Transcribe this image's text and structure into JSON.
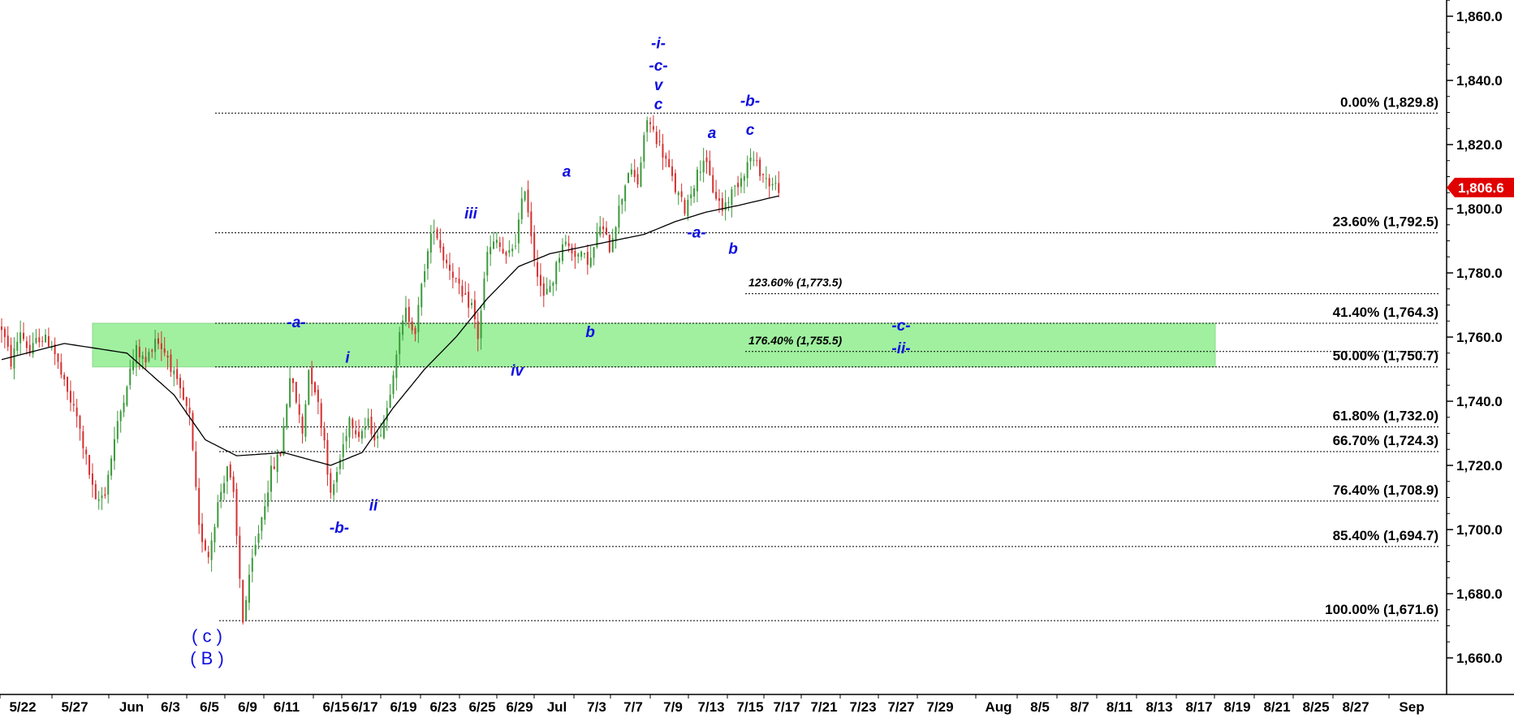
{
  "chart_data": {
    "type": "candlestick",
    "symbol": "",
    "title": "",
    "colors": {
      "up": "#3a9a3a",
      "down": "#d43030",
      "wave_labels": "#1010e0",
      "zone": "#a0f0a0",
      "last_price_bg": "#e00000",
      "moving_average": "#000000"
    },
    "y_axis": {
      "min": 1650,
      "max": 1865,
      "ticks": [
        "1,660.0",
        "1,680.0",
        "1,700.0",
        "1,720.0",
        "1,740.0",
        "1,760.0",
        "1,780.0",
        "1,800.0",
        "1,820.0",
        "1,840.0",
        "1,860.0"
      ],
      "tick_values": [
        1660,
        1680,
        1700,
        1720,
        1740,
        1760,
        1780,
        1800,
        1820,
        1840,
        1860
      ],
      "position": "right"
    },
    "x_axis": {
      "labels": [
        "5/22",
        "5/27",
        "Jun",
        "6/3",
        "6/5",
        "6/9",
        "6/11",
        "6/15",
        "6/17",
        "6/19",
        "6/23",
        "6/25",
        "6/29",
        "Jul",
        "7/3",
        "7/7",
        "7/9",
        "7/13",
        "7/15",
        "7/17",
        "7/21",
        "7/23",
        "7/27",
        "7/29",
        "Aug",
        "8/5",
        "8/7",
        "8/11",
        "8/13",
        "8/17",
        "8/19",
        "8/21",
        "8/25",
        "8/27",
        "Sep"
      ]
    },
    "last_price": {
      "value": 1806.6,
      "label": "1,806.6"
    },
    "retracement_levels": [
      {
        "label": "0.00% (1,829.8)",
        "value": 1829.8
      },
      {
        "label": "23.60% (1,792.5)",
        "value": 1792.5
      },
      {
        "label": "41.40% (1,764.3)",
        "value": 1764.3
      },
      {
        "label": "50.00% (1,750.7)",
        "value": 1750.7
      },
      {
        "label": "61.80% (1,732.0)",
        "value": 1732.0
      },
      {
        "label": "66.70% (1,724.3)",
        "value": 1724.3
      },
      {
        "label": "76.40% (1,708.9)",
        "value": 1708.9
      },
      {
        "label": "85.40% (1,694.7)",
        "value": 1694.7
      },
      {
        "label": "100.00% (1,671.6)",
        "value": 1671.6
      }
    ],
    "extension_levels": [
      {
        "label": "123.60% (1,773.5)",
        "value": 1773.5
      },
      {
        "label": "176.40% (1,755.5)",
        "value": 1755.5
      }
    ],
    "support_zone": {
      "from": 1750.7,
      "to": 1764.3,
      "start_label": "5/27",
      "end_label": "8/19"
    },
    "wave_labels": [
      {
        "text": "( c )",
        "value": 1665
      },
      {
        "text": "( B )",
        "value": 1658
      },
      {
        "text": "-a-",
        "value": 1763
      },
      {
        "text": "-b-",
        "value": 1699
      },
      {
        "text": "i",
        "value": 1752
      },
      {
        "text": "ii",
        "value": 1706
      },
      {
        "text": "iii",
        "value": 1797
      },
      {
        "text": "iv",
        "value": 1748
      },
      {
        "text": "a",
        "value": 1810
      },
      {
        "text": "b",
        "value": 1760
      },
      {
        "text": "c",
        "value": 1831
      },
      {
        "text": "v",
        "value": 1837
      },
      {
        "text": "-c-",
        "value": 1843
      },
      {
        "text": "-i-",
        "value": 1850
      },
      {
        "text": "-a-",
        "value": 1791
      },
      {
        "text": "a",
        "value": 1822
      },
      {
        "text": "b",
        "value": 1786
      },
      {
        "text": "c",
        "value": 1823
      },
      {
        "text": "-b-",
        "value": 1832
      },
      {
        "text": "-c-",
        "value": 1762
      },
      {
        "text": "-ii-",
        "value": 1755
      }
    ],
    "price_path": [
      [
        0,
        1763
      ],
      [
        3,
        1752
      ],
      [
        6,
        1762
      ],
      [
        9,
        1755
      ],
      [
        12,
        1760
      ],
      [
        16,
        1758
      ],
      [
        20,
        1745
      ],
      [
        24,
        1735
      ],
      [
        27,
        1722
      ],
      [
        30,
        1708
      ],
      [
        33,
        1712
      ],
      [
        36,
        1728
      ],
      [
        40,
        1746
      ],
      [
        43,
        1756
      ],
      [
        46,
        1752
      ],
      [
        49,
        1760
      ],
      [
        53,
        1754
      ],
      [
        56,
        1745
      ],
      [
        60,
        1735
      ],
      [
        63,
        1700
      ],
      [
        66,
        1692
      ],
      [
        69,
        1708
      ],
      [
        72,
        1720
      ],
      [
        74,
        1710
      ],
      [
        77,
        1672
      ],
      [
        80,
        1690
      ],
      [
        83,
        1704
      ],
      [
        86,
        1718
      ],
      [
        89,
        1724
      ],
      [
        92,
        1748
      ],
      [
        94,
        1740
      ],
      [
        96,
        1730
      ],
      [
        98,
        1750
      ],
      [
        100,
        1744
      ],
      [
        103,
        1728
      ],
      [
        105,
        1710
      ],
      [
        108,
        1722
      ],
      [
        111,
        1735
      ],
      [
        114,
        1730
      ],
      [
        117,
        1733
      ],
      [
        120,
        1728
      ],
      [
        123,
        1738
      ],
      [
        126,
        1756
      ],
      [
        129,
        1768
      ],
      [
        132,
        1762
      ],
      [
        135,
        1782
      ],
      [
        138,
        1795
      ],
      [
        141,
        1785
      ],
      [
        144,
        1780
      ],
      [
        147,
        1772
      ],
      [
        150,
        1770
      ],
      [
        152,
        1760
      ],
      [
        155,
        1786
      ],
      [
        158,
        1790
      ],
      [
        161,
        1784
      ],
      [
        164,
        1790
      ],
      [
        167,
        1807
      ],
      [
        170,
        1785
      ],
      [
        173,
        1772
      ],
      [
        176,
        1778
      ],
      [
        179,
        1790
      ],
      [
        182,
        1787
      ],
      [
        185,
        1785
      ],
      [
        188,
        1784
      ],
      [
        191,
        1795
      ],
      [
        194,
        1788
      ],
      [
        197,
        1800
      ],
      [
        200,
        1812
      ],
      [
        203,
        1808
      ],
      [
        206,
        1828
      ],
      [
        209,
        1822
      ],
      [
        212,
        1815
      ],
      [
        215,
        1806
      ],
      [
        218,
        1800
      ],
      [
        221,
        1808
      ],
      [
        224,
        1816
      ],
      [
        227,
        1806
      ],
      [
        230,
        1800
      ],
      [
        233,
        1805
      ],
      [
        236,
        1810
      ],
      [
        239,
        1816
      ],
      [
        242,
        1812
      ],
      [
        245,
        1808
      ],
      [
        248,
        1806.6
      ]
    ],
    "moving_average_path": [
      [
        0,
        1753
      ],
      [
        20,
        1758
      ],
      [
        40,
        1755
      ],
      [
        55,
        1742
      ],
      [
        65,
        1728
      ],
      [
        75,
        1723
      ],
      [
        90,
        1724
      ],
      [
        105,
        1720
      ],
      [
        115,
        1724
      ],
      [
        125,
        1738
      ],
      [
        135,
        1750
      ],
      [
        145,
        1760
      ],
      [
        155,
        1772
      ],
      [
        165,
        1782
      ],
      [
        175,
        1786
      ],
      [
        185,
        1788
      ],
      [
        195,
        1790
      ],
      [
        205,
        1792
      ],
      [
        215,
        1796
      ],
      [
        225,
        1799
      ],
      [
        235,
        1801
      ],
      [
        248,
        1804
      ]
    ]
  }
}
